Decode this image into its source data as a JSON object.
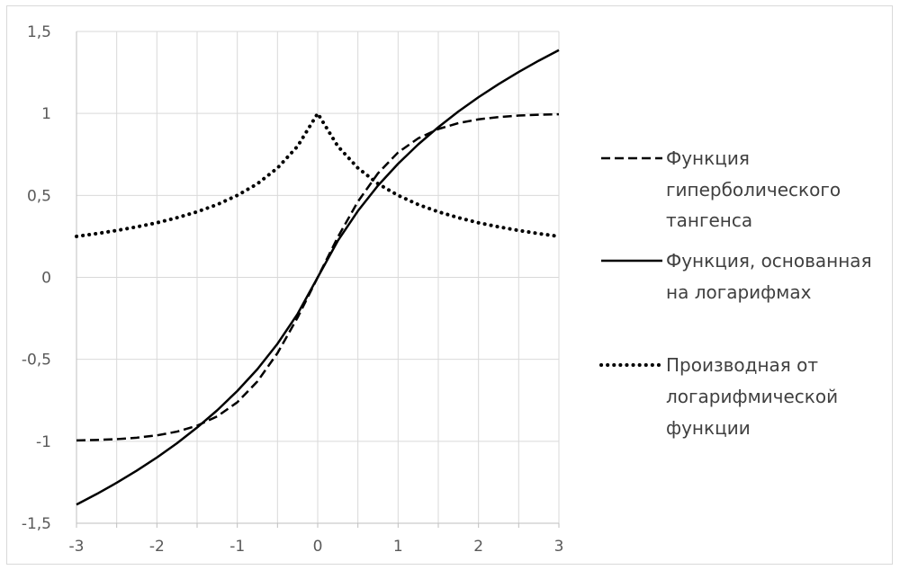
{
  "chart_data": {
    "type": "line",
    "title": "",
    "xlabel": "",
    "ylabel": "",
    "xlim": [
      -3,
      3
    ],
    "ylim": [
      -1.5,
      1.5
    ],
    "grid": true,
    "legend_position": "right",
    "x_ticks": [
      -3,
      -2.5,
      -2,
      -1.5,
      -1,
      -0.5,
      0,
      0.5,
      1,
      1.5,
      2,
      2.5,
      3
    ],
    "x_tick_labels": [
      "-3",
      "-2",
      "-1",
      "0",
      "1",
      "2",
      "3"
    ],
    "x_tick_label_values": [
      -3,
      -2,
      -1,
      0,
      1,
      2,
      3
    ],
    "y_tick_labels": [
      "1,5",
      "1",
      "0,5",
      "0",
      "-0,5",
      "-1",
      "-1,5"
    ],
    "y_tick_label_values": [
      1.5,
      1,
      0.5,
      0,
      -0.5,
      -1,
      -1.5
    ],
    "series": [
      {
        "name": "Функция гиперболического тангенса",
        "legend_lines": [
          "Функция",
          "гиперболического",
          "тангенса"
        ],
        "style": "dashed",
        "color": "#000000",
        "x": [
          -3,
          -2.75,
          -2.5,
          -2.25,
          -2,
          -1.75,
          -1.5,
          -1.25,
          -1,
          -0.75,
          -0.5,
          -0.25,
          0,
          0.25,
          0.5,
          0.75,
          1,
          1.25,
          1.5,
          1.75,
          2,
          2.25,
          2.5,
          2.75,
          3
        ],
        "y": [
          -0.995,
          -0.992,
          -0.987,
          -0.978,
          -0.964,
          -0.941,
          -0.905,
          -0.848,
          -0.762,
          -0.635,
          -0.462,
          -0.245,
          0,
          0.245,
          0.462,
          0.635,
          0.762,
          0.848,
          0.905,
          0.941,
          0.964,
          0.978,
          0.987,
          0.992,
          0.995
        ]
      },
      {
        "name": "Функция, основанная на логарифмах",
        "legend_lines": [
          "Функция, основанная",
          "на логарифмах"
        ],
        "style": "solid",
        "color": "#000000",
        "x": [
          -3,
          -2.75,
          -2.5,
          -2.25,
          -2,
          -1.75,
          -1.5,
          -1.25,
          -1,
          -0.75,
          -0.5,
          -0.25,
          0,
          0.25,
          0.5,
          0.75,
          1,
          1.25,
          1.5,
          1.75,
          2,
          2.25,
          2.5,
          2.75,
          3
        ],
        "y": [
          -1.386,
          -1.322,
          -1.253,
          -1.179,
          -1.099,
          -1.012,
          -0.916,
          -0.811,
          -0.693,
          -0.56,
          -0.405,
          -0.223,
          0,
          0.223,
          0.405,
          0.56,
          0.693,
          0.811,
          0.916,
          1.012,
          1.099,
          1.179,
          1.253,
          1.322,
          1.386
        ]
      },
      {
        "name": "Производная от логарифмической функции",
        "legend_lines": [
          "Производная от",
          "логарифмической",
          "функции"
        ],
        "style": "dotted",
        "color": "#000000",
        "x": [
          -3,
          -2.75,
          -2.5,
          -2.25,
          -2,
          -1.75,
          -1.5,
          -1.25,
          -1,
          -0.75,
          -0.5,
          -0.25,
          0,
          0.25,
          0.5,
          0.75,
          1,
          1.25,
          1.5,
          1.75,
          2,
          2.25,
          2.5,
          2.75,
          3
        ],
        "y": [
          0.25,
          0.267,
          0.286,
          0.308,
          0.333,
          0.364,
          0.4,
          0.444,
          0.5,
          0.571,
          0.667,
          0.8,
          1,
          0.8,
          0.667,
          0.571,
          0.5,
          0.444,
          0.4,
          0.364,
          0.333,
          0.308,
          0.286,
          0.267,
          0.25
        ]
      }
    ]
  }
}
